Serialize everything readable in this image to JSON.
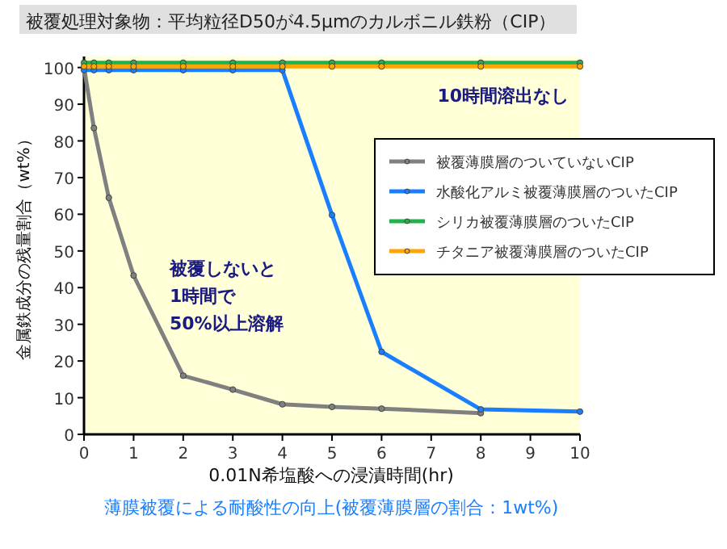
{
  "chart_data": {
    "type": "line",
    "title": "被覆処理対象物：平均粒径D50が4.5μmのカルボニル鉄粉（CIP）",
    "xlabel": "0.01N希塩酸への浸漬時間(hr)",
    "ylabel": "金属鉄成分の残量割合（wt%）",
    "x": [
      0,
      0.2,
      0.5,
      1,
      2,
      3,
      4,
      5,
      6,
      8,
      10
    ],
    "series": [
      {
        "name": "被覆薄膜層のついていないCIP",
        "color": "#808080",
        "values": [
          100,
          83.5,
          64.5,
          43.3,
          16,
          12.2,
          8.2,
          7.5,
          7,
          5.8,
          null
        ]
      },
      {
        "name": "水酸化アルミ被覆薄膜層のついたCIP",
        "color": "#1a7fff",
        "values": [
          99.3,
          99.3,
          99.3,
          99.3,
          99.3,
          99.3,
          99.3,
          59.8,
          22.5,
          6.8,
          6.2
        ]
      },
      {
        "name": "シリカ被覆薄膜層のついたCIP",
        "color": "#22b14c",
        "values": [
          101.3,
          101.3,
          101.3,
          101.3,
          101.3,
          101.3,
          101.3,
          101.3,
          101.3,
          101.3,
          101.3
        ]
      },
      {
        "name": "チタニア被覆薄膜層のついたCIP",
        "color": "#ffa500",
        "values": [
          100.3,
          100.3,
          100.3,
          100.3,
          100.3,
          100.3,
          100.3,
          100.3,
          100.3,
          100.3,
          100.3
        ]
      }
    ],
    "xlim": [
      0,
      10
    ],
    "ylim": [
      0,
      103
    ],
    "xticks": [
      0,
      1,
      2,
      3,
      4,
      5,
      6,
      7,
      8,
      9,
      10
    ],
    "yticks": [
      0,
      10,
      20,
      30,
      40,
      50,
      60,
      70,
      80,
      90,
      100
    ],
    "annotations": [
      "10時間溶出なし",
      "被覆しないと\n1時間で\n50%以上溶解",
      "薄膜被覆による耐酸性の向上(被覆薄膜層の割合：1wt%)"
    ],
    "legend": "right",
    "marker": "circle",
    "line_style": "solid",
    "grid": false
  }
}
